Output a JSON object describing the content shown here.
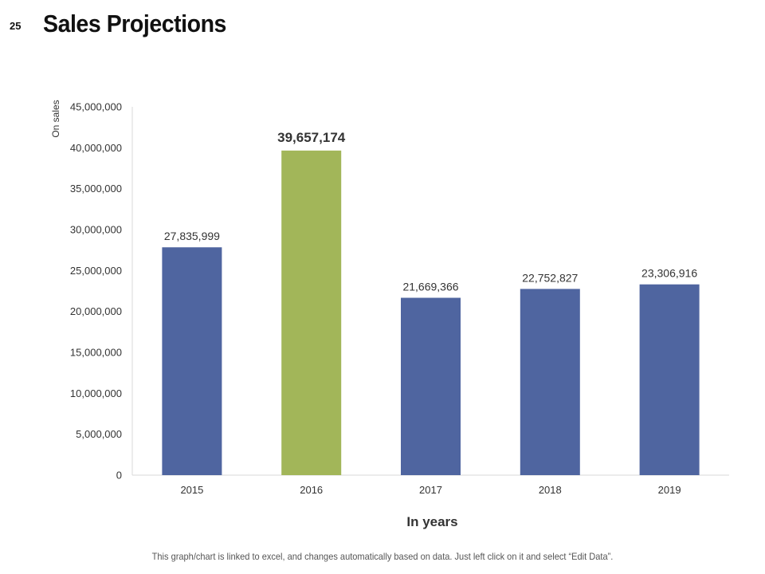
{
  "slide": {
    "number": "25",
    "title": "Sales Projections",
    "footnote": "This graph/chart is linked to excel, and changes automatically based on data. Just left click on it and select “Edit Data”."
  },
  "colors": {
    "primary_bar": "#4f65a0",
    "highlight_bar": "#a2b659",
    "axis": "#d9d9d9",
    "text": "#333333"
  },
  "chart_data": {
    "type": "bar",
    "title": "Sales Projections",
    "xlabel": "In years",
    "ylabel": "On sales",
    "categories": [
      "2015",
      "2016",
      "2017",
      "2018",
      "2019"
    ],
    "values": [
      27835999,
      39657174,
      21669366,
      22752827,
      23306916
    ],
    "value_labels": [
      "27,835,999",
      "39,657,174",
      "21,669,366",
      "22,752,827",
      "23,306,916"
    ],
    "highlight_index": 1,
    "ylim": [
      0,
      45000000
    ],
    "yticks": [
      0,
      5000000,
      10000000,
      15000000,
      20000000,
      25000000,
      30000000,
      35000000,
      40000000,
      45000000
    ],
    "ytick_labels": [
      "0",
      "5,000,000",
      "10,000,000",
      "15,000,000",
      "20,000,000",
      "25,000,000",
      "30,000,000",
      "35,000,000",
      "40,000,000",
      "45,000,000"
    ],
    "grid": false,
    "legend": "none"
  }
}
